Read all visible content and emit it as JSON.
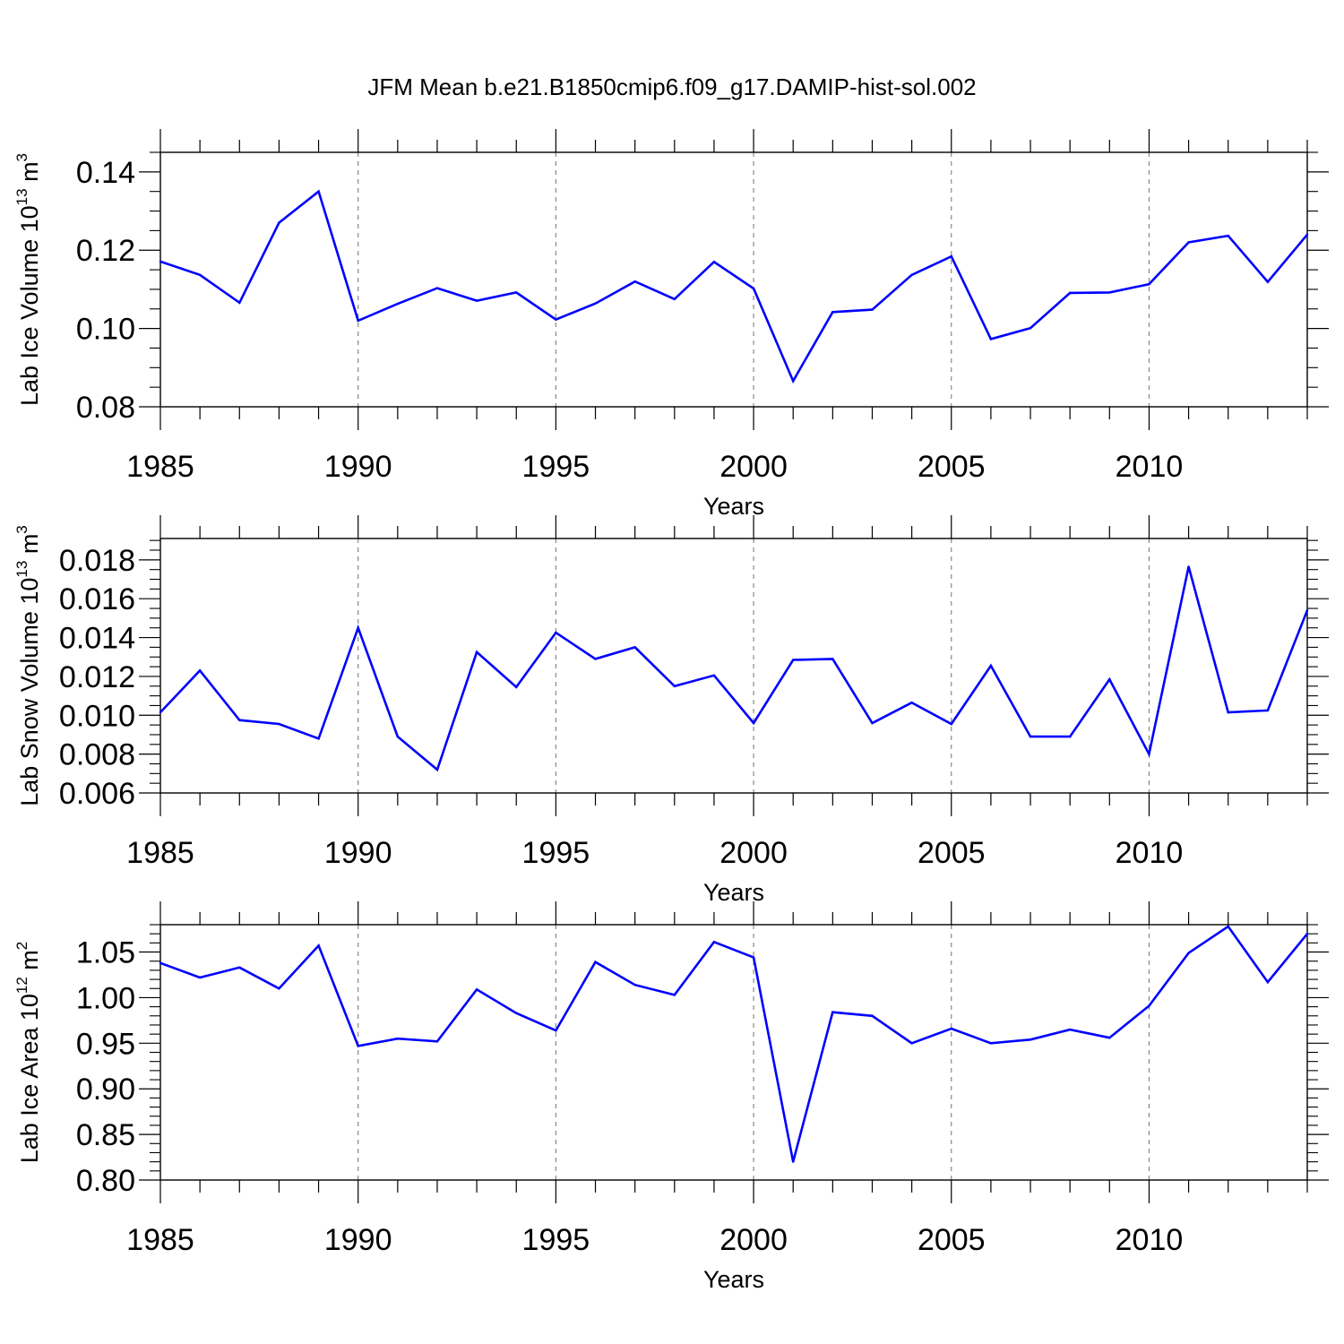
{
  "title": "JFM Mean b.e21.B1850cmip6.f09_g17.DAMIP-hist-sol.002",
  "colors": {
    "line": "#0000ff",
    "axis": "#000000",
    "grid": "#888888"
  },
  "chart_data": [
    {
      "type": "line",
      "ylabel": {
        "main": "Lab Ice Volume 10",
        "exp": "13",
        "unit": " m",
        "unit_exp": "3"
      },
      "xlabel": "Years",
      "xlim": [
        1985,
        2014
      ],
      "ylim": [
        0.08,
        0.145
      ],
      "yticks": [
        0.08,
        0.1,
        0.12,
        0.14
      ],
      "ytick_labels": [
        "0.08",
        "0.10",
        "0.12",
        "0.14"
      ],
      "yminor_step": 0.005,
      "xticks": [
        1985,
        1990,
        1995,
        2000,
        2005,
        2010
      ],
      "xtick_labels": [
        "1985",
        "1990",
        "1995",
        "2000",
        "2005",
        "2010"
      ],
      "x": [
        1985,
        1986,
        1987,
        1988,
        1989,
        1990,
        1991,
        1992,
        1993,
        1994,
        1995,
        1996,
        1997,
        1998,
        1999,
        2000,
        2001,
        2002,
        2003,
        2004,
        2005,
        2006,
        2007,
        2008,
        2009,
        2010,
        2011,
        2012,
        2013,
        2014
      ],
      "series": [
        {
          "name": "Lab Ice Volume",
          "values": [
            0.1171,
            0.1137,
            0.1066,
            0.127,
            0.135,
            0.102,
            0.1063,
            0.1103,
            0.1071,
            0.1092,
            0.1023,
            0.1064,
            0.112,
            0.1075,
            0.117,
            0.1102,
            0.0866,
            0.1042,
            0.1048,
            0.1137,
            0.1184,
            0.0973,
            0.1001,
            0.1091,
            0.1092,
            0.1113,
            0.122,
            0.1237,
            0.1119,
            0.124
          ]
        }
      ]
    },
    {
      "type": "line",
      "ylabel": {
        "main": "Lab Snow Volume 10",
        "exp": "13",
        "unit": " m",
        "unit_exp": "3"
      },
      "xlabel": "Years",
      "xlim": [
        1985,
        2014
      ],
      "ylim": [
        0.006,
        0.0191
      ],
      "yticks": [
        0.006,
        0.008,
        0.01,
        0.012,
        0.014,
        0.016,
        0.018
      ],
      "ytick_labels": [
        "0.006",
        "0.008",
        "0.010",
        "0.012",
        "0.014",
        "0.016",
        "0.018"
      ],
      "yminor_step": 0.0005,
      "xticks": [
        1985,
        1990,
        1995,
        2000,
        2005,
        2010
      ],
      "xtick_labels": [
        "1985",
        "1990",
        "1995",
        "2000",
        "2005",
        "2010"
      ],
      "x": [
        1985,
        1986,
        1987,
        1988,
        1989,
        1990,
        1991,
        1992,
        1993,
        1994,
        1995,
        1996,
        1997,
        1998,
        1999,
        2000,
        2001,
        2002,
        2003,
        2004,
        2005,
        2006,
        2007,
        2008,
        2009,
        2010,
        2011,
        2012,
        2013,
        2014
      ],
      "series": [
        {
          "name": "Lab Snow Volume",
          "values": [
            0.01015,
            0.0123,
            0.00975,
            0.00955,
            0.0088,
            0.0145,
            0.0089,
            0.0072,
            0.01325,
            0.01145,
            0.01425,
            0.0129,
            0.0135,
            0.0115,
            0.01205,
            0.0096,
            0.01285,
            0.0129,
            0.0096,
            0.01065,
            0.00955,
            0.01255,
            0.0089,
            0.0089,
            0.01185,
            0.008,
            0.01765,
            0.01015,
            0.01025,
            0.0154
          ]
        }
      ]
    },
    {
      "type": "line",
      "ylabel": {
        "main": "Lab Ice Area 10",
        "exp": "12",
        "unit": " m",
        "unit_exp": "2"
      },
      "xlabel": "Years",
      "xlim": [
        1985,
        2014
      ],
      "ylim": [
        0.8,
        1.08
      ],
      "yticks": [
        0.8,
        0.85,
        0.9,
        0.95,
        1.0,
        1.05
      ],
      "ytick_labels": [
        "0.80",
        "0.85",
        "0.90",
        "0.95",
        "1.00",
        "1.05"
      ],
      "yminor_step": 0.01,
      "xticks": [
        1985,
        1990,
        1995,
        2000,
        2005,
        2010
      ],
      "xtick_labels": [
        "1985",
        "1990",
        "1995",
        "2000",
        "2005",
        "2010"
      ],
      "x": [
        1985,
        1986,
        1987,
        1988,
        1989,
        1990,
        1991,
        1992,
        1993,
        1994,
        1995,
        1996,
        1997,
        1998,
        1999,
        2000,
        2001,
        2002,
        2003,
        2004,
        2005,
        2006,
        2007,
        2008,
        2009,
        2010,
        2011,
        2012,
        2013,
        2014
      ],
      "series": [
        {
          "name": "Lab Ice Area",
          "values": [
            1.038,
            1.022,
            1.033,
            1.01,
            1.057,
            0.947,
            0.955,
            0.952,
            1.009,
            0.983,
            0.964,
            1.039,
            1.014,
            1.003,
            1.061,
            1.044,
            0.82,
            0.984,
            0.98,
            0.95,
            0.966,
            0.95,
            0.954,
            0.965,
            0.956,
            0.991,
            1.049,
            1.078,
            1.017,
            1.07
          ]
        }
      ]
    }
  ]
}
